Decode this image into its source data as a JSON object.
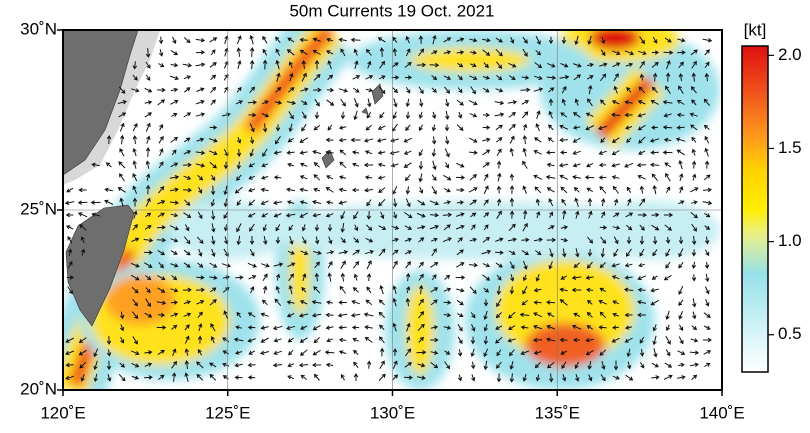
{
  "title": "50m Currents  19 Oct. 2021",
  "map": {
    "xlim": [
      120,
      140
    ],
    "ylim": [
      20,
      30
    ],
    "xticks": [
      {
        "value": 120,
        "label": "120˚E"
      },
      {
        "value": 125,
        "label": "125˚E"
      },
      {
        "value": 130,
        "label": "130˚E"
      },
      {
        "value": 135,
        "label": "135˚E"
      },
      {
        "value": 140,
        "label": "140˚E"
      }
    ],
    "yticks": [
      {
        "value": 20,
        "label": "20˚N"
      },
      {
        "value": 25,
        "label": "25˚N"
      },
      {
        "value": 30,
        "label": "30˚N"
      }
    ]
  },
  "colorbar": {
    "unit": "[kt]",
    "clim": [
      0.3,
      2.05
    ],
    "ticks": [
      0.5,
      {
        "value": 1,
        "label": "1.0"
      },
      1.5,
      {
        "value": 2,
        "label": "2.0"
      }
    ]
  }
}
